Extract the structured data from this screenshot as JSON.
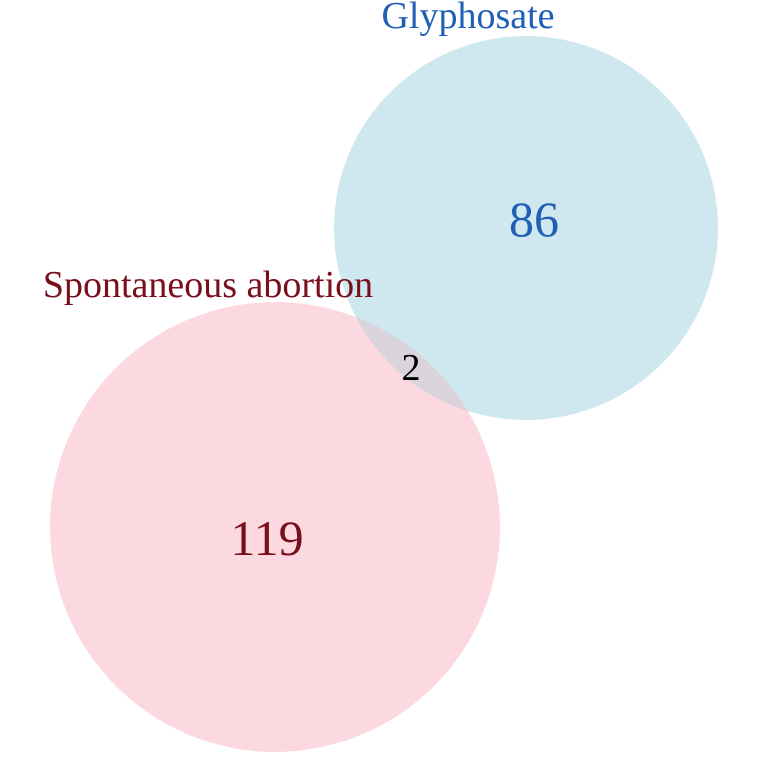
{
  "venn": {
    "sets": [
      {
        "name": "Glyphosate",
        "only_count": "86",
        "fill_color": "#cfe7ef",
        "label_color": "#1f5fb5",
        "count_color": "#1f5fb5"
      },
      {
        "name": "Spontaneous abortion",
        "only_count": "119",
        "fill_color": "#fcd8df",
        "label_color": "#7a0f1c",
        "count_color": "#7a0f1c"
      }
    ],
    "intersection_count": "2",
    "intersection_color": "#000000"
  }
}
